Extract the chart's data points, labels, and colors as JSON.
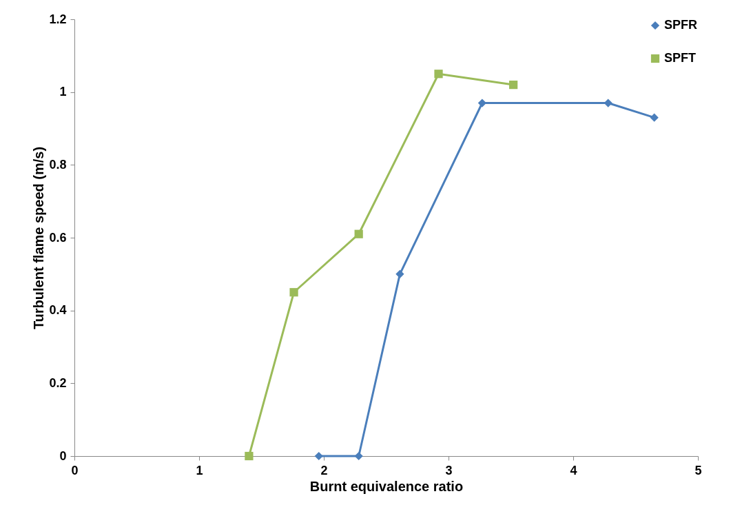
{
  "chart_data": {
    "type": "line",
    "xlabel": "Burnt equivalence ratio",
    "ylabel": "Turbulent flame speed (m/s)",
    "xlim": [
      0,
      5
    ],
    "xticks": [
      0,
      1,
      2,
      3,
      4,
      5
    ],
    "ylim": [
      0,
      1.2
    ],
    "yticks": [
      0,
      0.2,
      0.4,
      0.6,
      0.8,
      1,
      1.2
    ],
    "legend": "top right",
    "line_style": "solid",
    "series": [
      {
        "name": "SPFR",
        "color": "#4a7ebb",
        "marker": "diamond",
        "x": [
          1.96,
          2.28,
          2.61,
          3.27,
          4.28,
          4.65
        ],
        "values": [
          0,
          0,
          0.5,
          0.97,
          0.97,
          0.93
        ]
      },
      {
        "name": "SPFT",
        "color": "#9bbb59",
        "marker": "square",
        "x": [
          1.4,
          1.76,
          2.28,
          2.92,
          3.52
        ],
        "values": [
          0,
          0.45,
          0.61,
          1.05,
          1.02
        ]
      }
    ]
  }
}
